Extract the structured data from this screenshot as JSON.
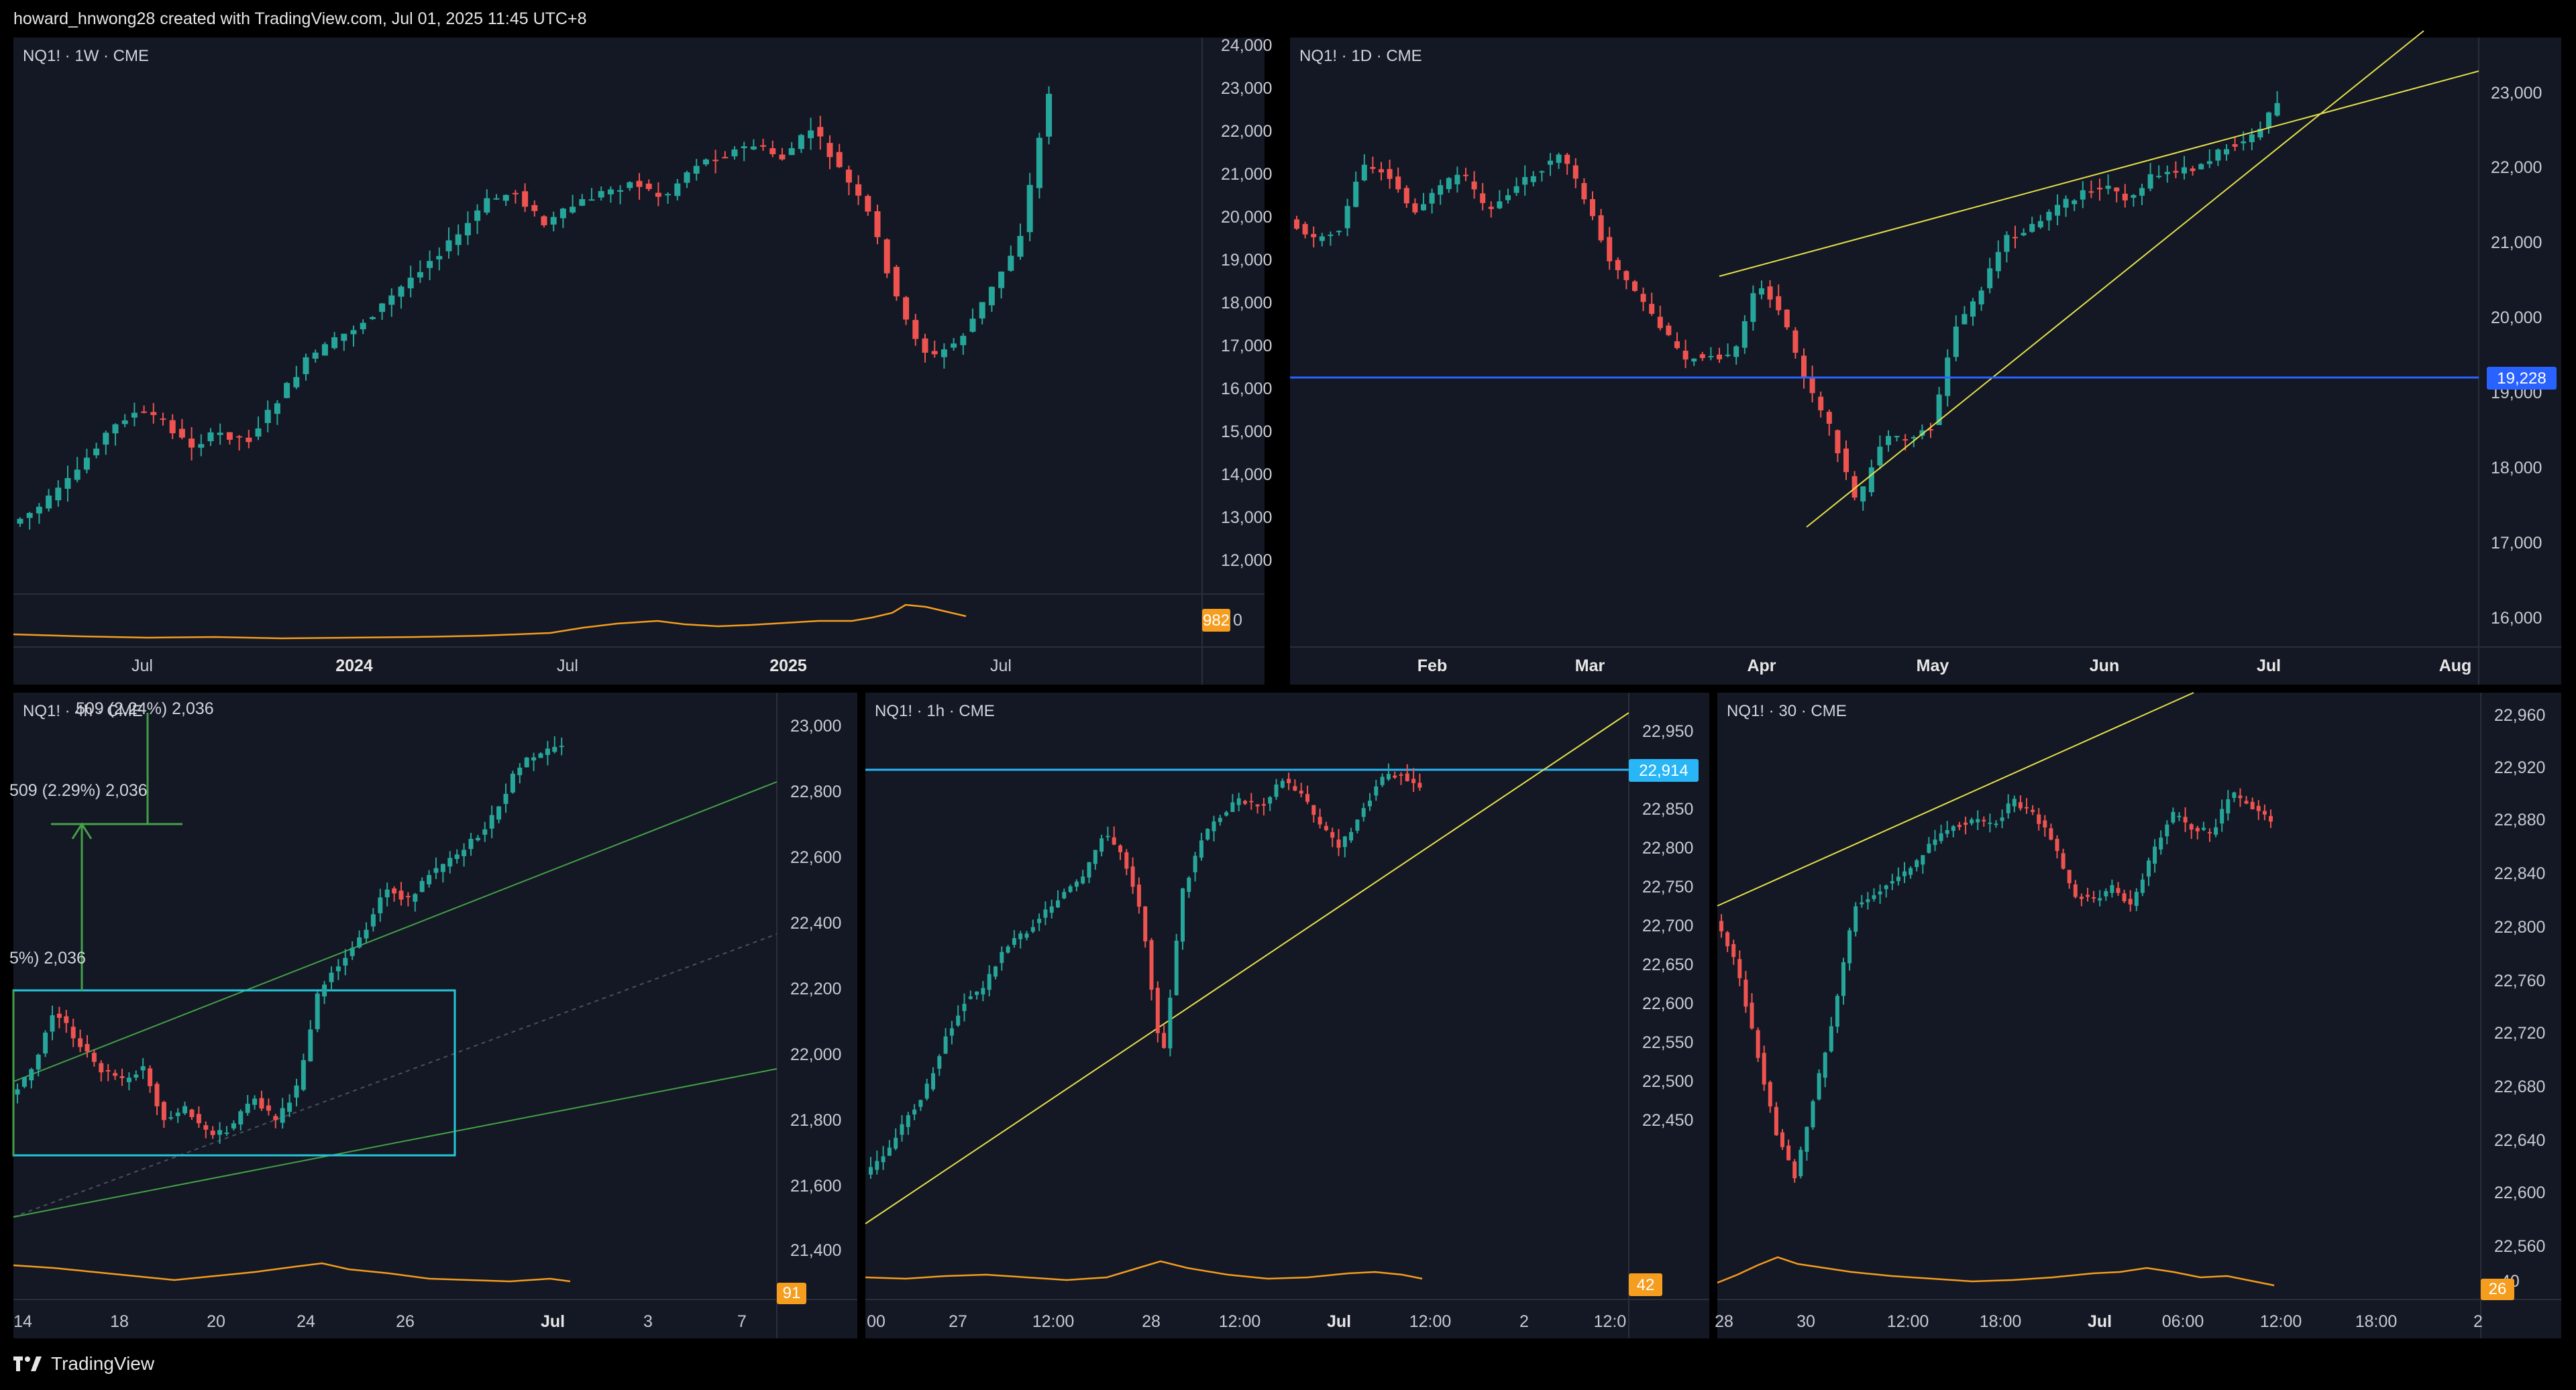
{
  "header": {
    "attribution": "howard_hnwong28 created with TradingView.com, Jul 01, 2025 11:45 UTC+8"
  },
  "footer": {
    "brand": "TradingView"
  },
  "colors": {
    "background": "#141824",
    "up": "#26a69a",
    "down": "#ef5350",
    "volume_line": "#f59d1e",
    "trendline": "#e5e04a",
    "level_blue": "#2962ff",
    "level_cyan": "#29b6f6",
    "channel_green": "#43a047",
    "box_cyan": "#26c6da"
  },
  "panels": [
    {
      "id": "weekly",
      "legend": "NQ1! · 1W · CME",
      "price_ticks": [
        "24,000",
        "23,000",
        "22,000",
        "21,000",
        "20,000",
        "19,000",
        "18,000",
        "17,000",
        "16,000",
        "15,000",
        "14,000",
        "13,000",
        "12,000"
      ],
      "time_labels": [
        {
          "text": "Jul",
          "bold": false
        },
        {
          "text": "2024",
          "bold": true
        },
        {
          "text": "Jul",
          "bold": false
        },
        {
          "text": "2025",
          "bold": true
        },
        {
          "text": "Jul",
          "bold": false
        }
      ],
      "indicator_value": "982",
      "indicator_cut": "0"
    },
    {
      "id": "daily",
      "legend": "NQ1! · 1D · CME",
      "price_ticks": [
        "23,000",
        "22,000",
        "21,000",
        "20,000",
        "19,000",
        "18,000",
        "17,000",
        "16,000"
      ],
      "level_label": "19,228",
      "time_labels": [
        {
          "text": "Feb",
          "bold": true
        },
        {
          "text": "Mar",
          "bold": true
        },
        {
          "text": "Apr",
          "bold": true
        },
        {
          "text": "May",
          "bold": true
        },
        {
          "text": "Jun",
          "bold": true
        },
        {
          "text": "Jul",
          "bold": true
        },
        {
          "text": "Aug",
          "bold": true
        }
      ]
    },
    {
      "id": "4h",
      "legend": "NQ1! · 4h · CME",
      "price_ticks": [
        "23,000",
        "22,800",
        "22,600",
        "22,400",
        "22,200",
        "22,000",
        "21,800",
        "21,600",
        "21,400"
      ],
      "time_labels": [
        {
          "text": "14",
          "bold": false
        },
        {
          "text": "18",
          "bold": false
        },
        {
          "text": "20",
          "bold": false
        },
        {
          "text": "24",
          "bold": false
        },
        {
          "text": "26",
          "bold": false
        },
        {
          "text": "Jul",
          "bold": true
        },
        {
          "text": "3",
          "bold": false
        },
        {
          "text": "7",
          "bold": false
        }
      ],
      "indicator_value": "91",
      "annotations": [
        "509 (2.24%) 2,036",
        "509 (2.29%) 2,036",
        "5%) 2,036"
      ]
    },
    {
      "id": "1h",
      "legend": "NQ1! · 1h · CME",
      "price_ticks": [
        "22,950",
        "22,900",
        "22,850",
        "22,800",
        "22,750",
        "22,700",
        "22,650",
        "22,600",
        "22,550",
        "22,500",
        "22,450"
      ],
      "level_label": "22,914",
      "time_labels": [
        {
          "text": "00",
          "bold": false
        },
        {
          "text": "27",
          "bold": false
        },
        {
          "text": "12:00",
          "bold": false
        },
        {
          "text": "28",
          "bold": false
        },
        {
          "text": "12:00",
          "bold": false
        },
        {
          "text": "Jul",
          "bold": true
        },
        {
          "text": "12:00",
          "bold": false
        },
        {
          "text": "2",
          "bold": false
        },
        {
          "text": "12:0",
          "bold": false
        }
      ],
      "indicator_value": "42"
    },
    {
      "id": "30m",
      "legend": "NQ1! · 30 · CME",
      "price_ticks": [
        "22,960",
        "22,920",
        "22,880",
        "22,840",
        "22,800",
        "22,760",
        "22,720",
        "22,680",
        "22,640",
        "22,600",
        "22,560"
      ],
      "time_labels": [
        {
          "text": "28",
          "bold": false
        },
        {
          "text": "30",
          "bold": false
        },
        {
          "text": "12:00",
          "bold": false
        },
        {
          "text": "18:00",
          "bold": false
        },
        {
          "text": "Jul",
          "bold": true
        },
        {
          "text": "06:00",
          "bold": false
        },
        {
          "text": "12:00",
          "bold": false
        },
        {
          "text": "18:00",
          "bold": false
        },
        {
          "text": "2",
          "bold": false
        }
      ],
      "indicator_value": "26",
      "indicator_cut": "40"
    }
  ]
}
